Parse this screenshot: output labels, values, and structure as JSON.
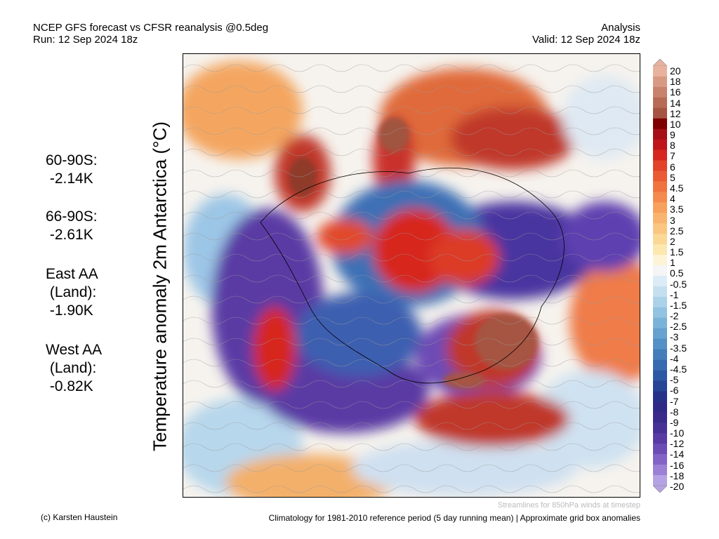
{
  "header": {
    "title_left": "NCEP GFS forecast vs CFSR reanalysis @0.5deg",
    "run": "Run: 12 Sep 2024 18z",
    "title_right": "Analysis",
    "valid": "Valid: 12 Sep 2024 18z"
  },
  "map": {
    "title": "Temperature anomaly 2m Antarctica (°C)"
  },
  "stats": [
    {
      "lines": [
        "60-90S:",
        " -2.14K"
      ]
    },
    {
      "lines": [
        "66-90S:",
        " -2.61K"
      ]
    },
    {
      "lines": [
        "East AA",
        " (Land):",
        " -1.90K"
      ]
    },
    {
      "lines": [
        "West AA",
        " (Land):",
        " -0.82K"
      ]
    }
  ],
  "colorbar": {
    "labels": [
      "20",
      "18",
      "16",
      "14",
      "12",
      "10",
      "9",
      "8",
      "7",
      "6",
      "5",
      "4.5",
      "4",
      "3.5",
      "3",
      "2.5",
      "2",
      "1.5",
      "1",
      "0.5",
      "-0.5",
      "-1",
      "-1.5",
      "-2",
      "-2.5",
      "-3",
      "-3.5",
      "-4",
      "-4.5",
      "-5",
      "-6",
      "-7",
      "-8",
      "-9",
      "-10",
      "-12",
      "-14",
      "-16",
      "-18",
      "-20"
    ],
    "colors": [
      "#e8b29e",
      "#d99a84",
      "#c9826b",
      "#b86b54",
      "#a65542",
      "#7f0000",
      "#a50f15",
      "#c0141b",
      "#d7261e",
      "#e2432a",
      "#ea5a34",
      "#f0733f",
      "#f48a4d",
      "#f7a15d",
      "#f9b46f",
      "#fac682",
      "#fbd896",
      "#fce7ae",
      "#fdf4d8",
      "#f5f5f5",
      "#dcecf6",
      "#c4e0f0",
      "#abd2e9",
      "#92c3e1",
      "#7ab3d8",
      "#65a2cf",
      "#5390c5",
      "#437ebb",
      "#376bb0",
      "#2d58a4",
      "#264597",
      "#263289",
      "#2e2a86",
      "#3a2a8c",
      "#473196",
      "#5a3aa4",
      "#6e4cb5",
      "#8463c6",
      "#9b80d6",
      "#b5a2e4"
    ]
  },
  "footer": {
    "stream_note": "Streamlines for 850hPa winds at timestep",
    "copyright": "(c) Karsten Haustein",
    "climatology": "Climatology for 1981-2010 reference period (5 day running mean) | Approximate grid box anomalies"
  }
}
